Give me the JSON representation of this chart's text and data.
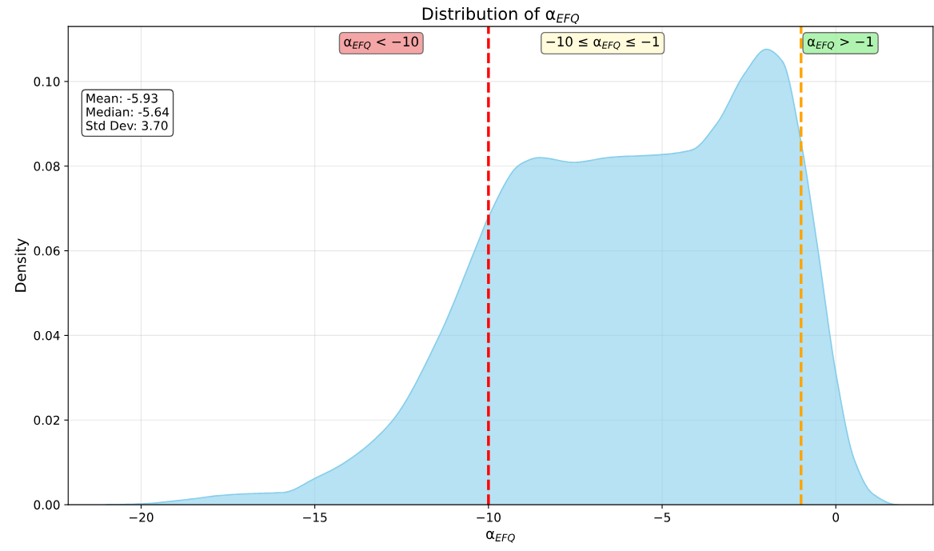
{
  "chart_data": {
    "type": "area",
    "title": "Distribution of α$_{EFQ}$",
    "xlabel": "α$_{EFQ}$",
    "ylabel": "Density",
    "x": [
      -21,
      -20,
      -18.7,
      -17.7,
      -16.9,
      -15.9,
      -15,
      -14.15,
      -12.8,
      -11.45,
      -10.29,
      -10,
      -9.07,
      -8.53,
      -7.55,
      -6.47,
      -5.04,
      -4.15,
      -3.43,
      -2.62,
      -2,
      -1.54,
      -1,
      -0.55,
      0,
      0.53,
      1.06,
      1.78
    ],
    "series": [
      {
        "color": "#87ceeb",
        "values": [
          0,
          0.0002,
          0.0012,
          0.0022,
          0.0026,
          0.0029,
          0.0062,
          0.0099,
          0.0195,
          0.0393,
          0.0622,
          0.068,
          0.0805,
          0.082,
          0.0809,
          0.0821,
          0.0827,
          0.0838,
          0.09,
          0.1019,
          0.1076,
          0.1048,
          0.0856,
          0.0622,
          0.0312,
          0.0107,
          0.0026,
          0
        ]
      }
    ],
    "xlim": [
      -22.1,
      2.8
    ],
    "xticks": [
      {
        "value": -20,
        "label": "−20"
      },
      {
        "value": -15,
        "label": "−15"
      },
      {
        "value": -10,
        "label": "−10"
      },
      {
        "value": -5,
        "label": "−5"
      },
      0
    ],
    "ylim": [
      0,
      0.113
    ],
    "yticks": [
      {
        "value": 0,
        "label": "0.00"
      },
      {
        "value": 0.02,
        "label": "0.02"
      },
      {
        "value": 0.04,
        "label": "0.04"
      },
      {
        "value": 0.06,
        "label": "0.06"
      },
      {
        "value": 0.08,
        "label": "0.08"
      },
      {
        "value": 0.1,
        "label": "0.10"
      }
    ],
    "grid": true,
    "line_style": "solid",
    "ref_lines": [
      {
        "axis": "x",
        "value": -10,
        "color": "#ff0000",
        "line_style": "dashed"
      },
      {
        "axis": "x",
        "value": -1,
        "color": "#ffa500",
        "line_style": "dashed"
      }
    ],
    "annotations": [
      "α$_{EFQ}$ < −10",
      "−10 ≤ α$_{EFQ}$ ≤ −1",
      "α$_{EFQ}$ > −1",
      "Mean: -5.93\nMedian: -5.64\nStd Dev: 3.70"
    ]
  }
}
